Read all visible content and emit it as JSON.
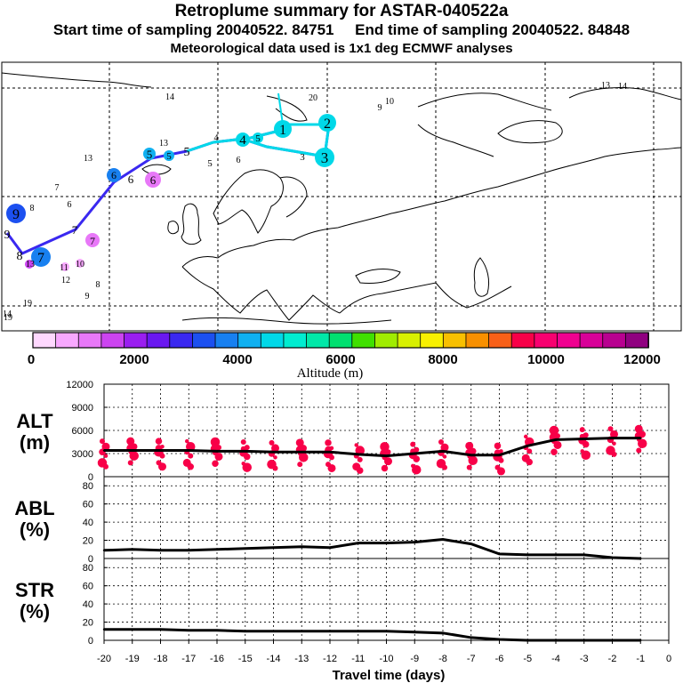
{
  "header": {
    "title": "Retroplume summary for ASTAR-040522a",
    "sampling": "Start time of sampling 20040522. 84751     End time of sampling 20040522. 84848",
    "met": "Meteorological data used is 1x1 deg ECMWF analyses"
  },
  "colorbar": {
    "label": "Altitude (m)",
    "ticks": [
      "0",
      "2000",
      "4000",
      "6000",
      "8000",
      "10000",
      "12000"
    ],
    "colors": [
      "#ffd8ff",
      "#f8a8ff",
      "#e878f8",
      "#cc44f0",
      "#9a1ef0",
      "#6a18f0",
      "#3a28f0",
      "#1c50f0",
      "#1880f0",
      "#10b0f0",
      "#00d8e8",
      "#00ecd0",
      "#00e8a8",
      "#00e070",
      "#40e000",
      "#a0ec00",
      "#d8f000",
      "#f8f000",
      "#f8c000",
      "#f89000",
      "#f86018",
      "#f80048",
      "#f80070",
      "#f00090",
      "#d80098",
      "#b80090",
      "#900080"
    ]
  },
  "map": {
    "trajectory_labels": [
      "1",
      "2",
      "3",
      "4",
      "5",
      "6",
      "7",
      "8",
      "9"
    ],
    "trajectory_color": "#3a28f0",
    "scatter_labels": [
      "9",
      "10",
      "11",
      "12",
      "13",
      "14",
      "19",
      "20"
    ]
  },
  "chart_data": [
    {
      "type": "line",
      "panel": "ALT",
      "title": "ALT",
      "ylabel": "(m)",
      "ylim": [
        0,
        12000
      ],
      "yticks": [
        "0",
        "3000",
        "6000",
        "9000",
        "12000"
      ],
      "x": [
        -20,
        -19,
        -18,
        -17,
        -16,
        -15,
        -14,
        -13,
        -12,
        -11,
        -10,
        -9,
        -8,
        -7,
        -6,
        -5,
        -4,
        -3,
        -2,
        -1
      ],
      "values": [
        3400,
        3400,
        3400,
        3400,
        3300,
        3300,
        3200,
        3200,
        3200,
        2900,
        2700,
        3000,
        3300,
        2800,
        2800,
        4000,
        4800,
        4900,
        5000,
        5000
      ],
      "cluster_color": "#f80048"
    },
    {
      "type": "line",
      "panel": "ABL",
      "title": "ABL",
      "ylabel": "(%)",
      "ylim": [
        0,
        90
      ],
      "yticks": [
        "0",
        "20",
        "40",
        "60",
        "80"
      ],
      "x": [
        -20,
        -19,
        -18,
        -17,
        -16,
        -15,
        -14,
        -13,
        -12,
        -11,
        -10,
        -9,
        -8,
        -7,
        -6,
        -5,
        -4,
        -3,
        -2,
        -1
      ],
      "values": [
        9,
        10,
        9,
        9,
        10,
        11,
        12,
        13,
        12,
        17,
        17,
        18,
        21,
        16,
        5,
        4,
        4,
        4,
        1,
        0
      ]
    },
    {
      "type": "line",
      "panel": "STR",
      "title": "STR",
      "ylabel": "(%)",
      "ylim": [
        0,
        90
      ],
      "yticks": [
        "0",
        "20",
        "40",
        "60",
        "80"
      ],
      "x": [
        -20,
        -19,
        -18,
        -17,
        -16,
        -15,
        -14,
        -13,
        -12,
        -11,
        -10,
        -9,
        -8,
        -7,
        -6,
        -5,
        -4,
        -3,
        -2,
        -1
      ],
      "values": [
        12,
        12,
        12,
        11,
        11,
        10,
        10,
        10,
        10,
        10,
        10,
        9,
        8,
        3,
        1,
        0,
        0,
        0,
        0,
        0
      ],
      "xlabel": "Travel time (days)",
      "xticks": [
        "-20",
        "-19",
        "-18",
        "-17",
        "-16",
        "-15",
        "-14",
        "-13",
        "-12",
        "-11",
        "-10",
        "-9",
        "-8",
        "-7",
        "-6",
        "-5",
        "-4",
        "-3",
        "-2",
        "-1",
        "0"
      ]
    }
  ]
}
